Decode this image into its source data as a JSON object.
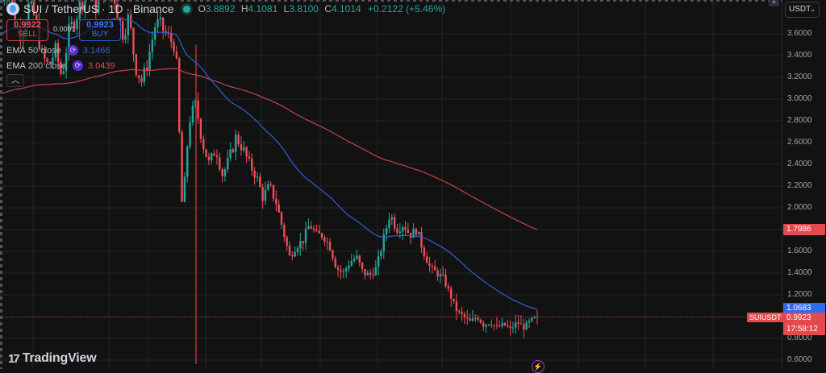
{
  "header": {
    "symbol_title": "SUI / TetherUS · 1D · Binance",
    "ohlc": {
      "o_label": "O",
      "o": "3.8892",
      "h_label": "H",
      "h": "4.1081",
      "l_label": "L",
      "l": "3.8100",
      "c_label": "C",
      "c": "4.1014",
      "change": "+0.2122 (+5.46%)"
    }
  },
  "trade": {
    "sell_price": "0.9922",
    "sell_label": "SELL",
    "spread": "0.0001",
    "buy_price": "0.9923",
    "buy_label": "BUY"
  },
  "indicators": [
    {
      "name": "EMA",
      "params": "50 close",
      "value": "3.1466",
      "color": "#2f5fd6"
    },
    {
      "name": "EMA",
      "params": "200 close",
      "value": "3.0439",
      "color": "#e5484d"
    }
  ],
  "axis": {
    "currency": "USDT",
    "ticks": [
      "3.6000",
      "3.4000",
      "3.2000",
      "3.0000",
      "2.8000",
      "2.6000",
      "2.4000",
      "2.2000",
      "2.0000",
      "1.8000",
      "1.6000",
      "1.4000",
      "1.2000",
      "1.0000",
      "0.8000",
      "0.6000"
    ],
    "price_tags": {
      "ema200": "1.7986",
      "ema50": "1.0683",
      "last": "0.9923",
      "countdown": "17:58:12",
      "symbol": "SUIUSDT"
    }
  },
  "branding": {
    "logo_text": "TradingView",
    "logo_mark": "17"
  },
  "colors": {
    "up": "#26a69a",
    "down": "#f04d58",
    "ema50": "#2f5fd6",
    "ema200": "#e5484d",
    "background": "#121212",
    "grid": "#242424"
  },
  "chart_data": {
    "type": "candlestick",
    "title": "SUI / TetherUS · 1D · Binance",
    "xlabel": "",
    "ylabel": "USDT",
    "ylim": [
      0.58,
      3.9
    ],
    "grid": true,
    "legend_position": "top-left",
    "series": [
      {
        "name": "Close (approx daily, sampled)",
        "values": [
          3.9,
          4.05,
          3.7,
          3.6,
          3.85,
          3.75,
          3.4,
          3.3,
          3.45,
          3.2,
          3.6,
          3.75,
          3.9,
          4.1,
          3.85,
          3.95,
          4.15,
          3.9,
          3.6,
          3.75,
          3.3,
          3.15,
          3.4,
          3.7,
          3.65,
          3.55,
          3.5,
          1.95,
          2.8,
          2.95,
          2.6,
          2.4,
          2.55,
          2.3,
          2.45,
          2.65,
          2.55,
          2.4,
          2.3,
          2.1,
          2.2,
          2.05,
          1.8,
          1.55,
          1.65,
          1.7,
          1.85,
          1.75,
          1.75,
          1.65,
          1.45,
          1.4,
          1.5,
          1.55,
          1.4,
          1.38,
          1.45,
          1.7,
          1.95,
          1.8,
          1.85,
          1.75,
          1.8,
          1.6,
          1.45,
          1.4,
          1.35,
          1.2,
          1.05,
          1.0,
          0.95,
          1.0,
          0.92,
          0.95,
          0.9,
          0.93,
          0.88,
          0.95,
          0.9,
          0.96,
          1.0
        ]
      },
      {
        "name": "EMA 50 close",
        "end_value": 1.0683
      },
      {
        "name": "EMA 200 close",
        "end_value": 1.7986
      }
    ],
    "last_price": 0.9923
  }
}
